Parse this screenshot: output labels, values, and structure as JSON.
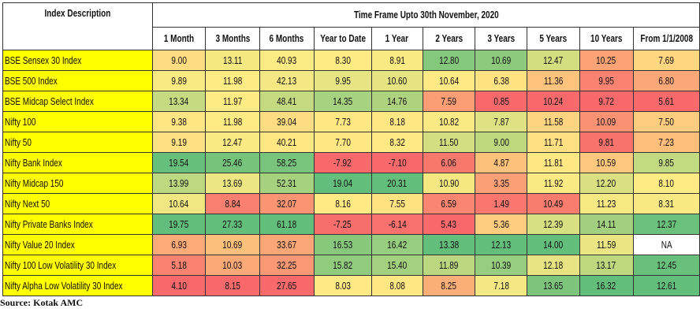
{
  "header": {
    "row_header": "Index Description",
    "group_header": "Time Frame Upto 30th November, 2020",
    "columns": [
      "1 Month",
      "3 Months",
      "6 Months",
      "Year to Date",
      "1 Year",
      "2 Years",
      "3 Years",
      "5 Years",
      "10 Years",
      "From 1/1/2008"
    ]
  },
  "table": {
    "rows": [
      [
        "BSE Sensex 30 Index",
        "9.00",
        "13.11",
        "40.93",
        "8.30",
        "8.91",
        "12.80",
        "10.69",
        "12.47",
        "10.25",
        "7.69"
      ],
      [
        "BSE 500 Index",
        "9.89",
        "11.98",
        "42.13",
        "9.95",
        "10.60",
        "10.64",
        "6.38",
        "11.36",
        "9.95",
        "6.80"
      ],
      [
        "BSE Midcap Select Index",
        "13.34",
        "11.97",
        "48.41",
        "14.35",
        "14.76",
        "7.59",
        "0.85",
        "10.24",
        "9.72",
        "5.61"
      ],
      [
        "Nifty 100",
        "9.38",
        "11.98",
        "39.04",
        "7.73",
        "8.18",
        "10.82",
        "7.87",
        "11.58",
        "10.09",
        "7.50"
      ],
      [
        "Nifty 50",
        "9.19",
        "12.47",
        "40.21",
        "7.70",
        "8.32",
        "11.50",
        "9.00",
        "11.71",
        "9.81",
        "7.23"
      ],
      [
        "Nifty Bank Index",
        "19.54",
        "25.46",
        "58.25",
        "-7.92",
        "-7.10",
        "6.06",
        "4.87",
        "11.81",
        "10.59",
        "9.85"
      ],
      [
        "Nifty Midcap 150",
        "13.99",
        "13.69",
        "52.31",
        "19.04",
        "20.31",
        "10.90",
        "3.35",
        "11.92",
        "12.20",
        "8.10"
      ],
      [
        "Nifty Next 50",
        "10.64",
        "8.84",
        "32.07",
        "8.16",
        "7.55",
        "6.59",
        "1.49",
        "10.49",
        "11.23",
        "8.31"
      ],
      [
        "Nifty Private Banks Index",
        "19.75",
        "27.33",
        "61.18",
        "-7.25",
        "-6.14",
        "5.43",
        "5.36",
        "12.39",
        "14.11",
        "12.37"
      ],
      [
        "Nifty Value 20 Index",
        "6.93",
        "10.69",
        "33.67",
        "16.53",
        "16.42",
        "13.38",
        "12.13",
        "14.00",
        "11.59",
        "NA"
      ],
      [
        "Nifty 100 Low Volatility 30 Index",
        "5.18",
        "10.03",
        "32.25",
        "15.82",
        "15.40",
        "11.89",
        "10.39",
        "12.18",
        "13.17",
        "12.45"
      ],
      [
        "Nifty Alpha Low Volatility 30 Index",
        "4.10",
        "8.15",
        "27.65",
        "8.03",
        "8.08",
        "8.25",
        "7.18",
        "13.65",
        "16.32",
        "12.61"
      ]
    ]
  },
  "footer": {
    "source": "Source: Kotak AMC"
  }
}
